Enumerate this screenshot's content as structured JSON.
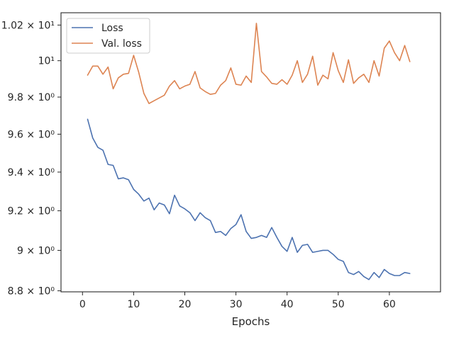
{
  "chart_data": {
    "type": "line",
    "xlabel": "Epochs",
    "ylabel": "",
    "title": "",
    "xlim": [
      -4.2,
      70
    ],
    "ylim": [
      8.795,
      10.27
    ],
    "y_scale": "log",
    "grid": false,
    "legend_position": "top-left",
    "x_ticks": [
      0,
      10,
      20,
      30,
      40,
      50,
      60
    ],
    "y_ticks": [
      {
        "value": 8.8,
        "label": "8.8 × 10⁰"
      },
      {
        "value": 9.0,
        "label": "9 × 10⁰"
      },
      {
        "value": 9.2,
        "label": "9.2 × 10⁰"
      },
      {
        "value": 9.4,
        "label": "9.4 × 10⁰"
      },
      {
        "value": 9.6,
        "label": "9.6 × 10⁰"
      },
      {
        "value": 9.8,
        "label": "9.8 × 10⁰"
      },
      {
        "value": 10.0,
        "label": "10¹"
      },
      {
        "value": 10.2,
        "label": "1.02 × 10¹"
      }
    ],
    "series": [
      {
        "name": "Loss",
        "color": "#4c72b0",
        "x": [
          1,
          2,
          3,
          4,
          5,
          6,
          7,
          8,
          9,
          10,
          11,
          12,
          13,
          14,
          15,
          16,
          17,
          18,
          19,
          20,
          21,
          22,
          23,
          24,
          25,
          26,
          27,
          28,
          29,
          30,
          31,
          32,
          33,
          34,
          35,
          36,
          37,
          38,
          39,
          40,
          41,
          42,
          43,
          44,
          45,
          46,
          47,
          48,
          49,
          50,
          51,
          52,
          53,
          54,
          55,
          56,
          57,
          58,
          59,
          60,
          61,
          62,
          63,
          64
        ],
        "values": [
          9.68,
          9.58,
          9.53,
          9.515,
          9.44,
          9.435,
          9.365,
          9.37,
          9.36,
          9.31,
          9.285,
          9.25,
          9.265,
          9.205,
          9.24,
          9.23,
          9.185,
          9.28,
          9.225,
          9.21,
          9.19,
          9.15,
          9.19,
          9.165,
          9.15,
          9.09,
          9.095,
          9.075,
          9.11,
          9.13,
          9.18,
          9.095,
          9.06,
          9.065,
          9.075,
          9.065,
          9.115,
          9.065,
          9.02,
          8.995,
          9.065,
          8.99,
          9.025,
          9.03,
          8.99,
          8.995,
          9.0,
          9.0,
          8.98,
          8.955,
          8.945,
          8.89,
          8.88,
          8.895,
          8.87,
          8.855,
          8.89,
          8.865,
          8.905,
          8.885,
          8.875,
          8.875,
          8.89,
          8.885
        ]
      },
      {
        "name": "Val. loss",
        "color": "#dd8452",
        "x": [
          1,
          2,
          3,
          4,
          5,
          6,
          7,
          8,
          9,
          10,
          11,
          12,
          13,
          14,
          15,
          16,
          17,
          18,
          19,
          20,
          21,
          22,
          23,
          24,
          25,
          26,
          27,
          28,
          29,
          30,
          31,
          32,
          33,
          34,
          35,
          36,
          37,
          38,
          39,
          40,
          41,
          42,
          43,
          44,
          45,
          46,
          47,
          48,
          49,
          50,
          51,
          52,
          53,
          54,
          55,
          56,
          57,
          58,
          59,
          60,
          61,
          62,
          63,
          64
        ],
        "values": [
          9.92,
          9.97,
          9.97,
          9.925,
          9.965,
          9.845,
          9.905,
          9.925,
          9.93,
          10.03,
          9.935,
          9.82,
          9.765,
          9.78,
          9.795,
          9.81,
          9.86,
          9.89,
          9.845,
          9.86,
          9.87,
          9.94,
          9.85,
          9.83,
          9.815,
          9.82,
          9.865,
          9.89,
          9.96,
          9.87,
          9.865,
          9.915,
          9.88,
          10.21,
          9.94,
          9.91,
          9.875,
          9.87,
          9.895,
          9.87,
          9.92,
          10.0,
          9.88,
          9.925,
          10.025,
          9.865,
          9.92,
          9.9,
          10.045,
          9.945,
          9.88,
          10.005,
          9.875,
          9.905,
          9.925,
          9.88,
          10.0,
          9.915,
          10.07,
          10.11,
          10.045,
          10.0,
          10.085,
          9.995
        ]
      }
    ]
  }
}
